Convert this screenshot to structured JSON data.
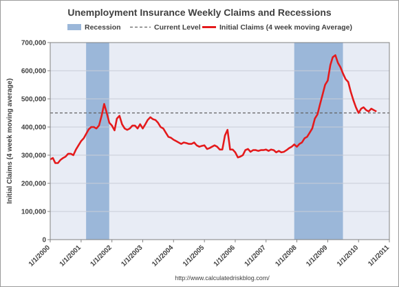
{
  "chart_data": {
    "type": "line",
    "title": "Unemployment Insurance Weekly Claims and Recessions",
    "xlabel": "",
    "ylabel": "Initial Claims (4 week moving average)",
    "source": "http://www.calculatedriskblog.com/",
    "ylim": [
      0,
      700000
    ],
    "xlim": [
      "1/1/2000",
      "1/1/2011"
    ],
    "y_ticks": [
      "0",
      "100,000",
      "200,000",
      "300,000",
      "400,000",
      "500,000",
      "600,000",
      "700,000"
    ],
    "y_tick_values": [
      0,
      100000,
      200000,
      300000,
      400000,
      500000,
      600000,
      700000
    ],
    "x_ticks": [
      "1/1/2000",
      "1/1/2001",
      "1/1/2002",
      "1/1/2003",
      "1/1/2004",
      "1/1/2005",
      "1/1/2006",
      "1/1/2007",
      "1/1/2008",
      "1/1/2009",
      "1/1/2010",
      "1/1/2011"
    ],
    "grid": "horizontal",
    "legend_position": "top",
    "legend": [
      {
        "label": "Recession",
        "kind": "band",
        "color": "#9bb7d9"
      },
      {
        "label": "Current Level",
        "kind": "dashed-line",
        "color": "#606060"
      },
      {
        "label": "Initial Claims (4 week moving Average)",
        "kind": "line",
        "color": "#e41a1c"
      }
    ],
    "recessions": [
      {
        "start": "2001-03-01",
        "end": "2001-11-30"
      },
      {
        "start": "2007-12-01",
        "end": "2009-06-30"
      }
    ],
    "current_level": 450000,
    "series": [
      {
        "name": "Initial Claims (4 week moving Average)",
        "color": "#e41a1c",
        "points": [
          [
            "2000-01-01",
            285000
          ],
          [
            "2000-02-01",
            290000
          ],
          [
            "2000-03-01",
            272000
          ],
          [
            "2000-04-01",
            272000
          ],
          [
            "2000-05-01",
            283000
          ],
          [
            "2000-06-01",
            290000
          ],
          [
            "2000-07-01",
            295000
          ],
          [
            "2000-08-01",
            305000
          ],
          [
            "2000-09-01",
            305000
          ],
          [
            "2000-10-01",
            300000
          ],
          [
            "2000-11-01",
            320000
          ],
          [
            "2000-12-01",
            335000
          ],
          [
            "2001-01-01",
            350000
          ],
          [
            "2001-02-01",
            360000
          ],
          [
            "2001-03-01",
            375000
          ],
          [
            "2001-04-01",
            392000
          ],
          [
            "2001-05-01",
            400000
          ],
          [
            "2001-06-01",
            400000
          ],
          [
            "2001-07-01",
            395000
          ],
          [
            "2001-08-01",
            405000
          ],
          [
            "2001-09-01",
            440000
          ],
          [
            "2001-10-01",
            482000
          ],
          [
            "2001-11-01",
            450000
          ],
          [
            "2001-12-01",
            415000
          ],
          [
            "2002-01-01",
            405000
          ],
          [
            "2002-02-01",
            388000
          ],
          [
            "2002-03-01",
            430000
          ],
          [
            "2002-04-01",
            440000
          ],
          [
            "2002-05-01",
            410000
          ],
          [
            "2002-06-01",
            395000
          ],
          [
            "2002-07-01",
            390000
          ],
          [
            "2002-08-01",
            395000
          ],
          [
            "2002-09-01",
            405000
          ],
          [
            "2002-10-01",
            405000
          ],
          [
            "2002-11-01",
            395000
          ],
          [
            "2002-12-01",
            410000
          ],
          [
            "2003-01-01",
            395000
          ],
          [
            "2003-02-01",
            410000
          ],
          [
            "2003-03-01",
            425000
          ],
          [
            "2003-04-01",
            435000
          ],
          [
            "2003-05-01",
            428000
          ],
          [
            "2003-06-01",
            425000
          ],
          [
            "2003-07-01",
            415000
          ],
          [
            "2003-08-01",
            400000
          ],
          [
            "2003-09-01",
            395000
          ],
          [
            "2003-10-01",
            380000
          ],
          [
            "2003-11-01",
            365000
          ],
          [
            "2003-12-01",
            362000
          ],
          [
            "2004-01-01",
            355000
          ],
          [
            "2004-02-01",
            350000
          ],
          [
            "2004-03-01",
            345000
          ],
          [
            "2004-04-01",
            340000
          ],
          [
            "2004-05-01",
            345000
          ],
          [
            "2004-06-01",
            343000
          ],
          [
            "2004-07-01",
            340000
          ],
          [
            "2004-08-01",
            340000
          ],
          [
            "2004-09-01",
            345000
          ],
          [
            "2004-10-01",
            335000
          ],
          [
            "2004-11-01",
            330000
          ],
          [
            "2004-12-01",
            333000
          ],
          [
            "2005-01-01",
            335000
          ],
          [
            "2005-02-01",
            322000
          ],
          [
            "2005-03-01",
            325000
          ],
          [
            "2005-04-01",
            330000
          ],
          [
            "2005-05-01",
            335000
          ],
          [
            "2005-06-01",
            330000
          ],
          [
            "2005-07-01",
            320000
          ],
          [
            "2005-08-01",
            320000
          ],
          [
            "2005-09-01",
            370000
          ],
          [
            "2005-10-01",
            390000
          ],
          [
            "2005-11-01",
            320000
          ],
          [
            "2005-12-01",
            320000
          ],
          [
            "2006-01-01",
            310000
          ],
          [
            "2006-02-01",
            292000
          ],
          [
            "2006-03-01",
            295000
          ],
          [
            "2006-04-01",
            300000
          ],
          [
            "2006-05-01",
            318000
          ],
          [
            "2006-06-01",
            322000
          ],
          [
            "2006-07-01",
            312000
          ],
          [
            "2006-08-01",
            318000
          ],
          [
            "2006-09-01",
            318000
          ],
          [
            "2006-10-01",
            315000
          ],
          [
            "2006-11-01",
            318000
          ],
          [
            "2006-12-01",
            318000
          ],
          [
            "2007-01-01",
            320000
          ],
          [
            "2007-02-01",
            315000
          ],
          [
            "2007-03-01",
            320000
          ],
          [
            "2007-04-01",
            318000
          ],
          [
            "2007-05-01",
            310000
          ],
          [
            "2007-06-01",
            315000
          ],
          [
            "2007-07-01",
            310000
          ],
          [
            "2007-08-01",
            312000
          ],
          [
            "2007-09-01",
            318000
          ],
          [
            "2007-10-01",
            325000
          ],
          [
            "2007-11-01",
            330000
          ],
          [
            "2007-12-01",
            338000
          ],
          [
            "2008-01-01",
            330000
          ],
          [
            "2008-02-01",
            340000
          ],
          [
            "2008-03-01",
            345000
          ],
          [
            "2008-04-01",
            360000
          ],
          [
            "2008-05-01",
            365000
          ],
          [
            "2008-06-01",
            380000
          ],
          [
            "2008-07-01",
            395000
          ],
          [
            "2008-08-01",
            430000
          ],
          [
            "2008-09-01",
            445000
          ],
          [
            "2008-10-01",
            480000
          ],
          [
            "2008-11-01",
            515000
          ],
          [
            "2008-12-01",
            550000
          ],
          [
            "2009-01-01",
            565000
          ],
          [
            "2009-02-01",
            620000
          ],
          [
            "2009-03-01",
            648000
          ],
          [
            "2009-04-01",
            655000
          ],
          [
            "2009-05-01",
            628000
          ],
          [
            "2009-06-01",
            612000
          ],
          [
            "2009-07-01",
            590000
          ],
          [
            "2009-08-01",
            570000
          ],
          [
            "2009-09-01",
            560000
          ],
          [
            "2009-10-01",
            525000
          ],
          [
            "2009-11-01",
            495000
          ],
          [
            "2009-12-01",
            470000
          ],
          [
            "2010-01-01",
            450000
          ],
          [
            "2010-02-01",
            465000
          ],
          [
            "2010-03-01",
            470000
          ],
          [
            "2010-04-01",
            460000
          ],
          [
            "2010-05-01",
            455000
          ],
          [
            "2010-06-01",
            465000
          ],
          [
            "2010-07-01",
            460000
          ],
          [
            "2010-08-01",
            455000
          ]
        ]
      }
    ]
  }
}
